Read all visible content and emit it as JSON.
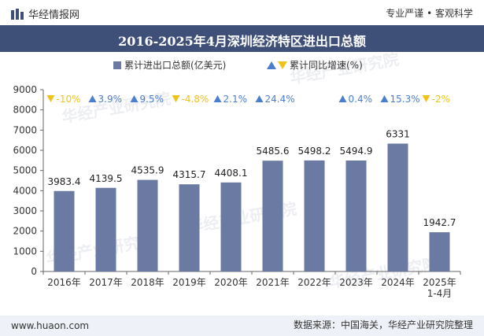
{
  "header": {
    "brand": "华经情报网",
    "tagline": "专业严谨 • 客观科学"
  },
  "footer": {
    "site": "www.huaon.com",
    "source": "数据来源：中国海关，华经产业研究院整理"
  },
  "watermark": "华经产业研究院",
  "colors": {
    "bar": "#6a7aa2",
    "title_bg": "#3e4f78",
    "up": "#4c7ed0",
    "down": "#f2c21b"
  },
  "chart_data": {
    "type": "bar",
    "title": "2016-2025年4月深圳经济特区进出口总额",
    "categories": [
      "2016年",
      "2017年",
      "2018年",
      "2019年",
      "2020年",
      "2021年",
      "2022年",
      "2023年",
      "2024年",
      "2025年\n1-4月"
    ],
    "series": [
      {
        "name": "累计进出口总额(亿美元)",
        "values": [
          3983.4,
          4139.5,
          4535.9,
          4315.7,
          4408.1,
          5485.6,
          5498.2,
          5494.9,
          6331,
          1942.7
        ],
        "labels": [
          "3983.4",
          "4139.5",
          "4535.9",
          "4315.7",
          "4408.1",
          "5485.6",
          "5498.2",
          "5494.9",
          "6331",
          "1942.7"
        ]
      },
      {
        "name": "累计同比增速(%)",
        "values": [
          -10,
          3.9,
          9.5,
          -4.8,
          2.1,
          24.4,
          null,
          0.4,
          15.3,
          -2
        ],
        "labels": [
          "-10%",
          "3.9%",
          "9.5%",
          "-4.8%",
          "2.1%",
          "24.4%",
          "",
          "0.4%",
          "15.3%",
          "-2%"
        ]
      }
    ],
    "yticks": [
      "0",
      "1000",
      "2000",
      "3000",
      "4000",
      "5000",
      "6000",
      "7000",
      "8000",
      "9000"
    ],
    "ylim": [
      0,
      9000
    ],
    "legend": "top-center",
    "grid": false
  }
}
